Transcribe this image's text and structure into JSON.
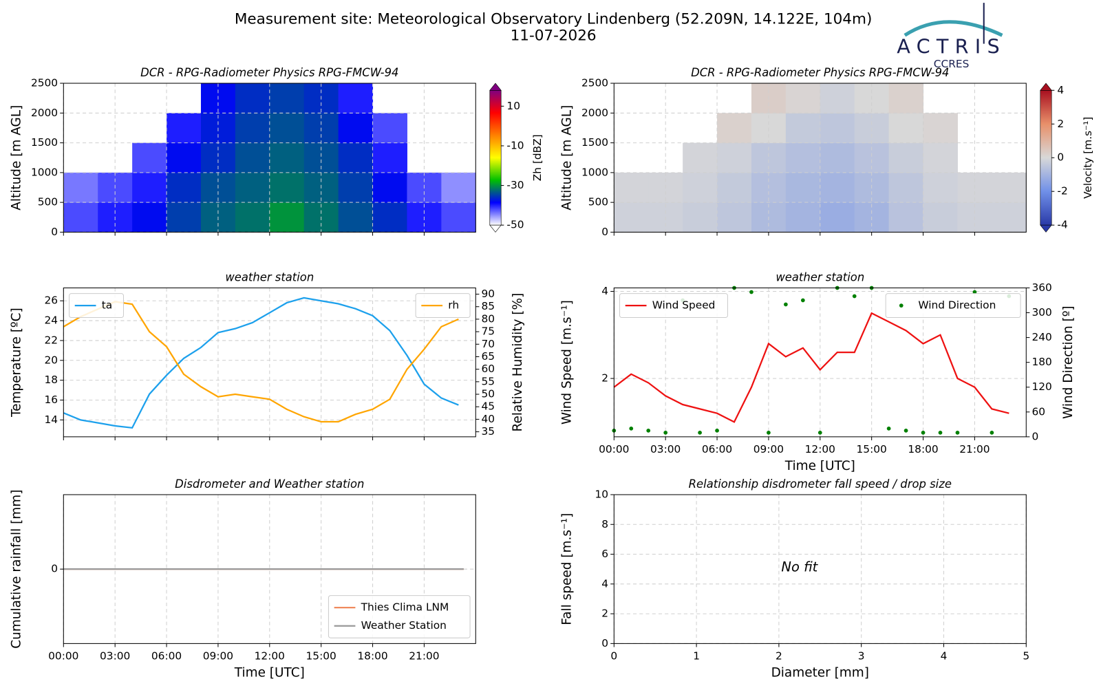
{
  "header": {
    "title": "Measurement site: Meteorological Observatory Lindenberg (52.209N, 14.122E, 104m)",
    "date": "11-07-2026",
    "logo": "ACTRIS",
    "logo_sub": "CCRES"
  },
  "chart_data": [
    {
      "type": "heatmap",
      "title": "DCR - RPG-Radiometer Physics RPG-FMCW-94",
      "y_label": "Altitude [m AGL]",
      "xlim": [
        0,
        24
      ],
      "xticks": [
        0,
        3,
        6,
        9,
        12,
        15,
        18,
        21
      ],
      "show_xticklabels": false,
      "ylim": [
        0,
        2500
      ],
      "yticks": [
        0,
        500,
        1000,
        1500,
        2000,
        2500
      ],
      "grid": true,
      "x": [
        1,
        3,
        5,
        7,
        9,
        11,
        13,
        15,
        17,
        19,
        21,
        23
      ],
      "y": [
        250,
        750,
        1250,
        1750,
        2250
      ],
      "z": [
        [
          -42,
          -40,
          -38,
          -35,
          -33,
          -32,
          -30,
          -32,
          -34,
          -36,
          -40,
          -42
        ],
        [
          -44,
          -42,
          -40,
          -36,
          -34,
          -33,
          -32,
          -33,
          -35,
          -38,
          -42,
          -45
        ],
        [
          null,
          null,
          -42,
          -38,
          -36,
          -34,
          -33,
          -34,
          -36,
          -40,
          null,
          null
        ],
        [
          null,
          null,
          null,
          -40,
          -37,
          -35,
          -34,
          -35,
          -38,
          -42,
          null,
          null
        ],
        [
          null,
          null,
          null,
          null,
          -38,
          -36,
          -35,
          -36,
          -40,
          null,
          null,
          null
        ]
      ],
      "colorbar_label": "Zh [dBZ]",
      "clim": [
        -50,
        18
      ],
      "cticks": [
        -50,
        -30,
        -10,
        10
      ],
      "colormap": [
        "#ffffff",
        "#0000ff",
        "#00c000",
        "#ffff00",
        "#ff8000",
        "#ff0000",
        "#800080"
      ]
    },
    {
      "type": "heatmap",
      "title": "DCR - RPG-Radiometer Physics RPG-FMCW-94",
      "y_label": "Altitude [m AGL]",
      "xlim": [
        0,
        24
      ],
      "xticks": [
        0,
        3,
        6,
        9,
        12,
        15,
        18,
        21
      ],
      "show_xticklabels": false,
      "ylim": [
        0,
        2500
      ],
      "yticks": [
        0,
        500,
        1000,
        1500,
        2000,
        2500
      ],
      "grid": true,
      "x": [
        1,
        3,
        5,
        7,
        9,
        11,
        13,
        15,
        17,
        19,
        21,
        23
      ],
      "y": [
        250,
        750,
        1250,
        1750,
        2250
      ],
      "z": [
        [
          -0.2,
          -0.2,
          -0.3,
          -0.5,
          -0.8,
          -1.0,
          -1.2,
          -1.0,
          -0.6,
          -0.3,
          -0.2,
          -0.2
        ],
        [
          -0.1,
          -0.1,
          -0.2,
          -0.4,
          -0.7,
          -0.9,
          -1.0,
          -0.8,
          -0.5,
          -0.2,
          -0.1,
          -0.1
        ],
        [
          null,
          null,
          -0.1,
          -0.2,
          -0.5,
          -0.7,
          -0.8,
          -0.6,
          -0.3,
          -0.1,
          null,
          null
        ],
        [
          null,
          null,
          null,
          0.2,
          0.0,
          -0.4,
          -0.5,
          -0.3,
          0.0,
          0.1,
          null,
          null
        ],
        [
          null,
          null,
          null,
          null,
          0.3,
          0.1,
          -0.2,
          0.0,
          0.2,
          null,
          null,
          null
        ]
      ],
      "colorbar_label": "Velocity [m.s⁻¹]",
      "clim": [
        -4,
        4
      ],
      "cticks": [
        -4,
        -2,
        0,
        2,
        4
      ],
      "colormap": [
        "#2a3aa8",
        "#7090e8",
        "#d8d8d8",
        "#e8906a",
        "#a81020"
      ]
    },
    {
      "type": "line",
      "title": "weather station",
      "y_label": "Temperature [ºC]",
      "y2_label": "Relative Humidity [%]",
      "xlim": [
        0,
        24
      ],
      "xticks": [
        0,
        3,
        6,
        9,
        12,
        15,
        18,
        21
      ],
      "show_xticklabels": false,
      "ylim": [
        12.3,
        27.3
      ],
      "yticks": [
        14,
        16,
        18,
        20,
        22,
        24,
        26
      ],
      "y2lim": [
        33,
        92.5
      ],
      "y2ticks": [
        35,
        40,
        45,
        50,
        55,
        60,
        65,
        70,
        75,
        80,
        85,
        90
      ],
      "grid": true,
      "x": [
        0,
        1,
        2,
        3,
        4,
        5,
        6,
        7,
        8,
        9,
        10,
        11,
        12,
        13,
        14,
        15,
        16,
        17,
        18,
        19,
        20,
        21,
        22,
        23
      ],
      "series": [
        {
          "name": "ta",
          "color": "#1ca0ec",
          "legend": "upper left",
          "values": [
            14.7,
            14.0,
            13.7,
            13.4,
            13.2,
            16.6,
            18.5,
            20.2,
            21.3,
            22.8,
            23.2,
            23.8,
            24.8,
            25.8,
            26.3,
            26.0,
            25.7,
            25.2,
            24.5,
            23.0,
            20.5,
            17.6,
            16.2,
            15.5
          ]
        },
        {
          "name": "rh",
          "color": "#ffa500",
          "axis": "y2",
          "legend": "upper right",
          "values": [
            77,
            81,
            84,
            87,
            86,
            75,
            69,
            58,
            53,
            49,
            50,
            49,
            48,
            44,
            41,
            39,
            39,
            42,
            44,
            48,
            60,
            68,
            77,
            80
          ]
        }
      ]
    },
    {
      "type": "line",
      "title": "weather station",
      "y_label": "Wind Speed [m.s⁻¹]",
      "y2_label": "Wind Direction [º]",
      "x_label": "Time [UTC]",
      "xlim": [
        0,
        24
      ],
      "xticks": [
        {
          "value": 0,
          "label": "00:00"
        },
        {
          "value": 3,
          "label": "03:00"
        },
        {
          "value": 6,
          "label": "06:00"
        },
        {
          "value": 9,
          "label": "09:00"
        },
        {
          "value": 12,
          "label": "12:00"
        },
        {
          "value": 15,
          "label": "15:00"
        },
        {
          "value": 18,
          "label": "18:00"
        },
        {
          "value": 21,
          "label": "21:00"
        }
      ],
      "ylim": [
        0.66,
        4.08
      ],
      "yticks": [
        2,
        4
      ],
      "y2lim": [
        0,
        360
      ],
      "y2ticks": [
        0,
        60,
        120,
        180,
        240,
        300,
        360
      ],
      "grid": true,
      "x": [
        0,
        1,
        2,
        3,
        4,
        5,
        6,
        7,
        8,
        9,
        10,
        11,
        12,
        13,
        14,
        15,
        16,
        17,
        18,
        19,
        20,
        21,
        22,
        23
      ],
      "series": [
        {
          "name": "Wind Speed",
          "color": "#ee1111",
          "legend": "upper left",
          "values": [
            1.8,
            2.1,
            1.9,
            1.6,
            1.4,
            1.3,
            1.2,
            1.0,
            1.8,
            2.8,
            2.5,
            2.7,
            2.2,
            2.6,
            2.6,
            3.5,
            3.3,
            3.1,
            2.8,
            3.0,
            2.0,
            1.8,
            1.3,
            1.2
          ]
        },
        {
          "name": "Wind Direction",
          "color": "#008000",
          "axis": "y2",
          "mode": "markers",
          "legend": "upper right",
          "values": [
            15,
            20,
            15,
            10,
            330,
            10,
            15,
            360,
            350,
            10,
            320,
            330,
            10,
            360,
            340,
            360,
            20,
            15,
            10,
            10,
            10,
            350,
            10,
            340
          ]
        }
      ]
    },
    {
      "type": "line",
      "title": "Disdrometer and Weather station",
      "y_label": "Cumulative rainfall [mm]",
      "x_label": "Time [UTC]",
      "xlim": [
        0,
        24
      ],
      "xticks": [
        {
          "value": 0,
          "label": "00:00"
        },
        {
          "value": 3,
          "label": "03:00"
        },
        {
          "value": 6,
          "label": "06:00"
        },
        {
          "value": 9,
          "label": "09:00"
        },
        {
          "value": 12,
          "label": "12:00"
        },
        {
          "value": 15,
          "label": "15:00"
        },
        {
          "value": 18,
          "label": "18:00"
        },
        {
          "value": 21,
          "label": "21:00"
        }
      ],
      "ylim": [
        -0.055,
        0.055
      ],
      "yticks": [
        0
      ],
      "grid": true,
      "legend": "lower right",
      "x": [
        0,
        23.3
      ],
      "series": [
        {
          "name": "Thies Clima LNM",
          "color": "#f08a5d",
          "values": [
            0,
            0
          ]
        },
        {
          "name": "Weather Station",
          "color": "#999999",
          "values": [
            0,
            0
          ]
        }
      ]
    },
    {
      "type": "scatter",
      "title": "Relationship disdrometer fall speed / drop size",
      "y_label": "Fall speed [m.s⁻¹]",
      "x_label": "Diameter [mm]",
      "xlim": [
        0,
        5
      ],
      "xticks": [
        0,
        1,
        2,
        3,
        4,
        5
      ],
      "ylim": [
        0,
        10
      ],
      "yticks": [
        0,
        2,
        4,
        6,
        8,
        10
      ],
      "grid": true,
      "annotation": "No fit"
    }
  ]
}
